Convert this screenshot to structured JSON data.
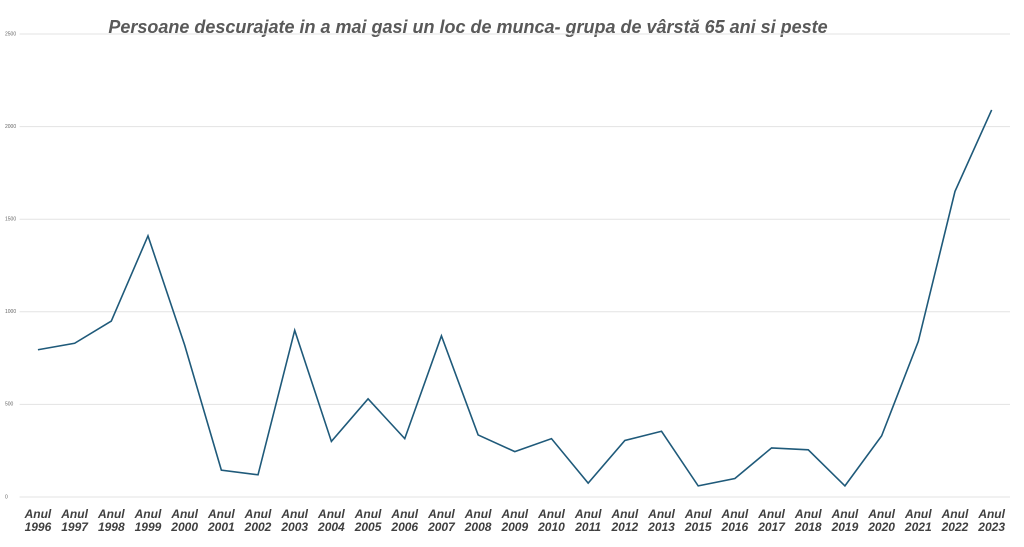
{
  "chart_data": {
    "type": "line",
    "title": "Persoane descurajate in a mai gasi un loc de munca- grupa de vârstă 65 ani si peste",
    "categories": [
      "Anul 1996",
      "Anul 1997",
      "Anul 1998",
      "Anul 1999",
      "Anul 2000",
      "Anul 2001",
      "Anul 2002",
      "Anul 2003",
      "Anul 2004",
      "Anul 2005",
      "Anul 2006",
      "Anul 2007",
      "Anul 2008",
      "Anul 2009",
      "Anul 2010",
      "Anul 2011",
      "Anul 2012",
      "Anul 2013",
      "Anul 2015",
      "Anul 2016",
      "Anul 2017",
      "Anul 2018",
      "Anul 2019",
      "Anul 2020",
      "Anul 2021",
      "Anul 2022",
      "Anul 2023"
    ],
    "values": [
      795,
      830,
      950,
      1410,
      820,
      145,
      120,
      900,
      300,
      530,
      315,
      870,
      335,
      245,
      315,
      75,
      305,
      355,
      60,
      100,
      265,
      255,
      60,
      330,
      840,
      1650,
      2090
    ],
    "color": "#1f5a7a",
    "ylim": [
      0,
      2500
    ],
    "yticks": [
      0,
      500,
      1000,
      1500,
      2000,
      2500
    ],
    "grid": true
  }
}
